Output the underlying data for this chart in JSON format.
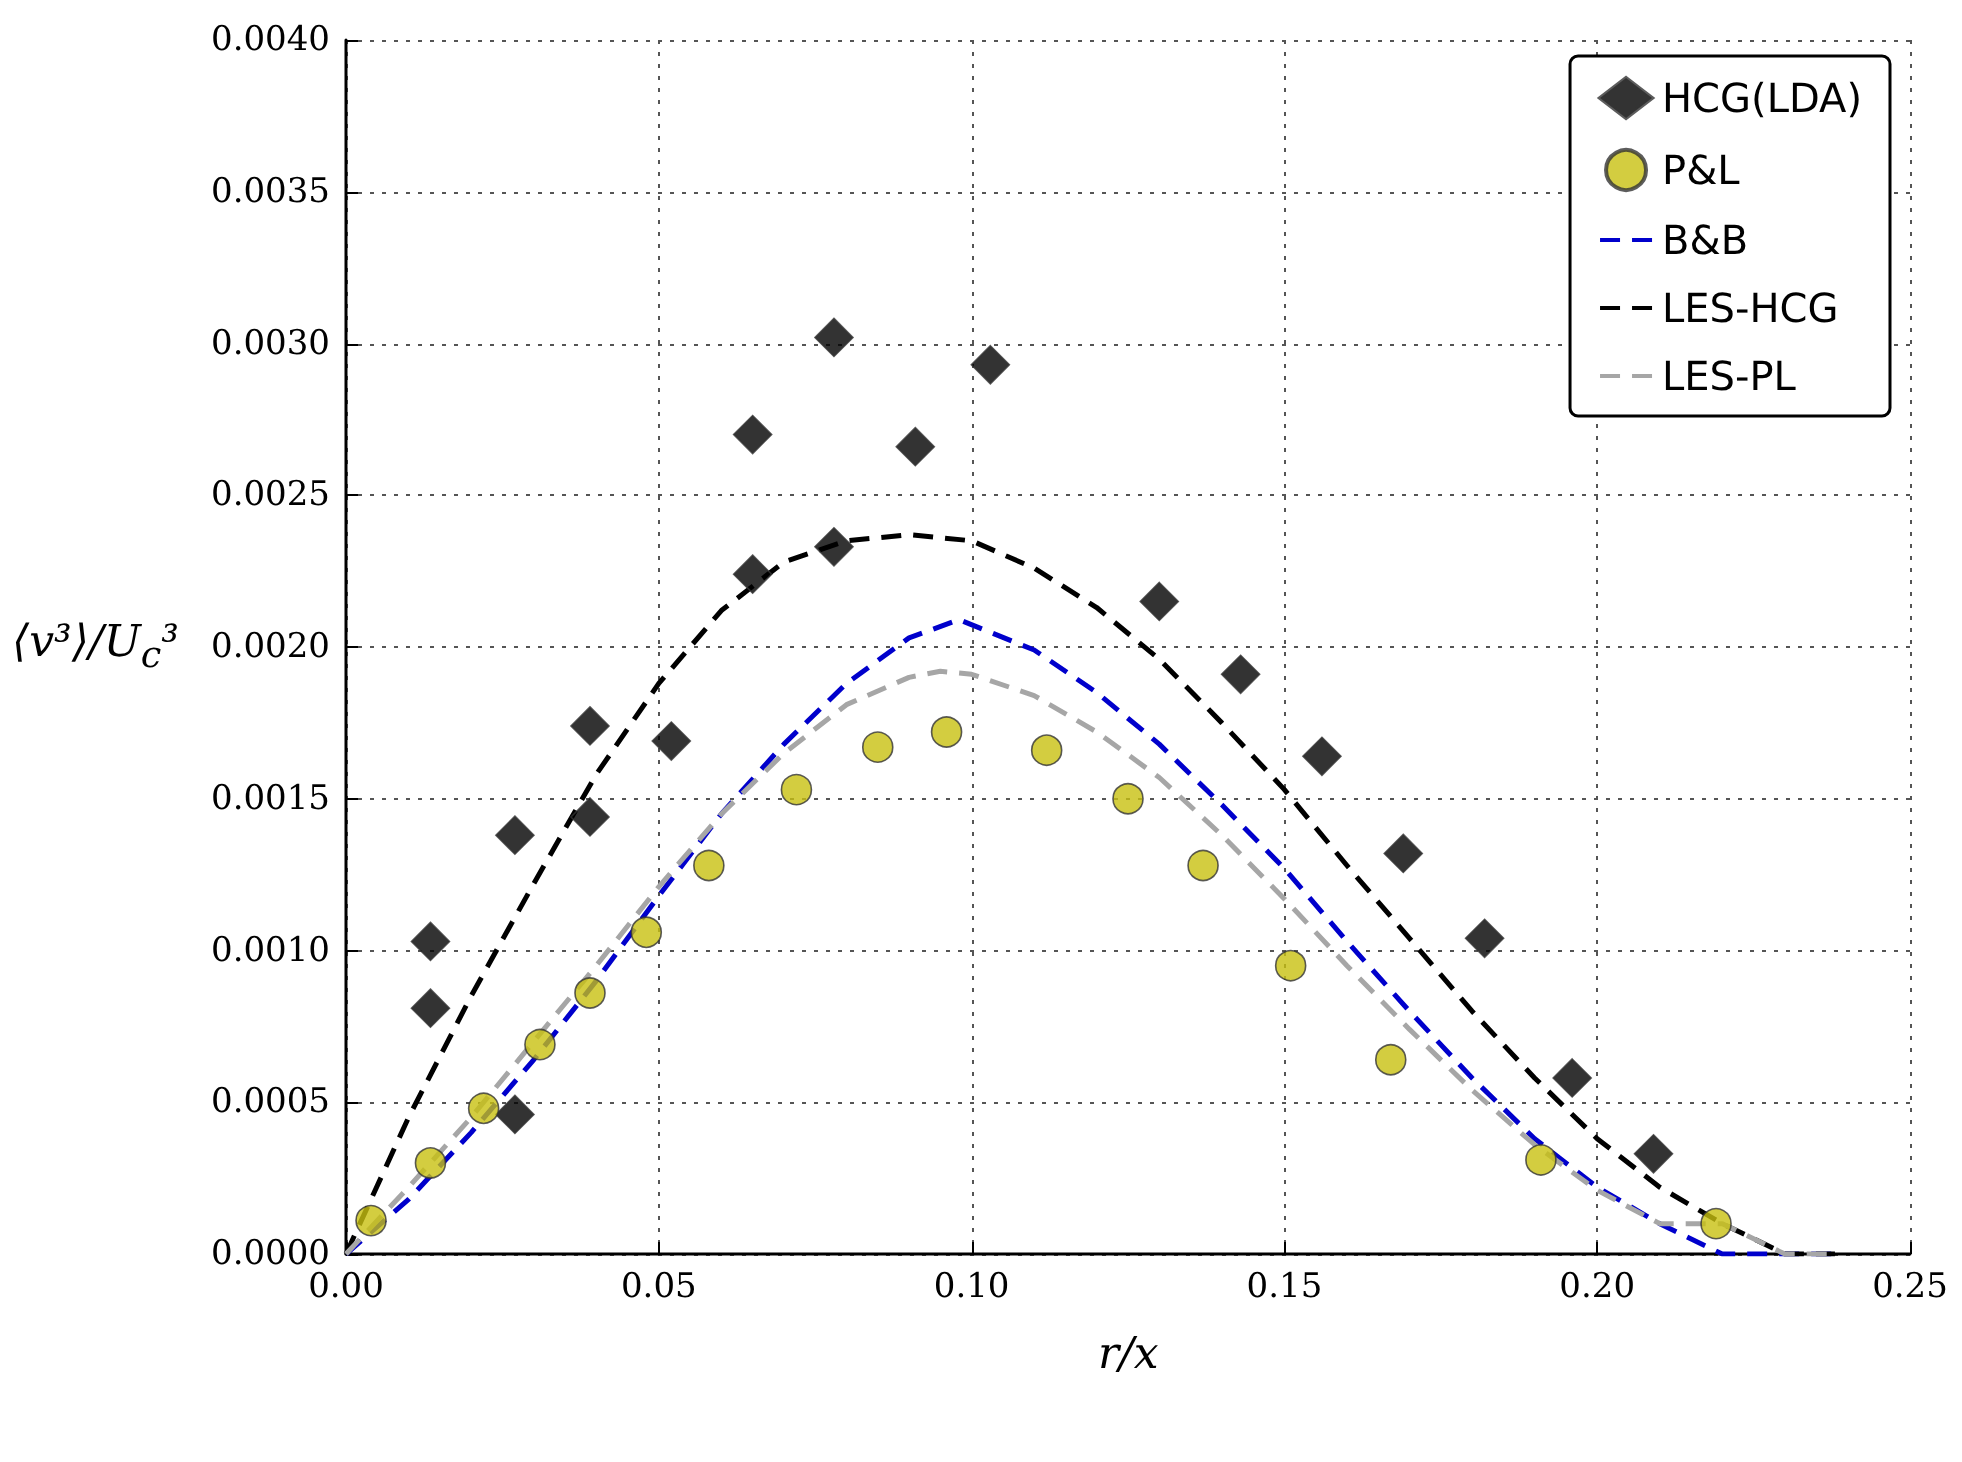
{
  "chart_data": {
    "type": "scatter",
    "xlabel": "r/x",
    "ylabel": "⟨v³⟩/U$_{c}$³",
    "xlim": [
      0,
      0.25
    ],
    "ylim": [
      0,
      0.004
    ],
    "xticks": [
      {
        "value": 0,
        "label": "0.00"
      },
      {
        "value": 0.05,
        "label": "0.05"
      },
      {
        "value": 0.1,
        "label": "0.10"
      },
      {
        "value": 0.15,
        "label": "0.15"
      },
      {
        "value": 0.2,
        "label": "0.20"
      },
      {
        "value": 0.25,
        "label": "0.25"
      }
    ],
    "yticks": [
      {
        "value": 0,
        "label": "0.0000"
      },
      {
        "value": 0.0005,
        "label": "0.0005"
      },
      {
        "value": 0.001,
        "label": "0.0010"
      },
      {
        "value": 0.0015,
        "label": "0.0015"
      },
      {
        "value": 0.002,
        "label": "0.0020"
      },
      {
        "value": 0.0025,
        "label": "0.0025"
      },
      {
        "value": 0.003,
        "label": "0.0030"
      },
      {
        "value": 0.0035,
        "label": "0.0035"
      },
      {
        "value": 0.004,
        "label": "0.0040"
      }
    ],
    "grid": true,
    "legend": "top right",
    "series": [
      {
        "name": "HCG(LDA)",
        "marker": "diamond",
        "color": "#000000",
        "x": [
          0.0135,
          0.0135,
          0.027,
          0.027,
          0.039,
          0.039,
          0.052,
          0.065,
          0.065,
          0.078,
          0.078,
          0.091,
          0.103,
          0.13,
          0.143,
          0.156,
          0.169,
          0.182,
          0.196,
          0.209
        ],
        "values": [
          0.00103,
          0.00081,
          0.00138,
          0.00046,
          0.00174,
          0.00144,
          0.00169,
          0.0027,
          0.00224,
          0.00302,
          0.00233,
          0.00266,
          0.00293,
          0.00215,
          0.00191,
          0.00164,
          0.00132,
          0.00104,
          0.00058,
          0.00033
        ]
      },
      {
        "name": "P&L",
        "marker": "circle",
        "color": "#c8c010",
        "x": [
          0.004,
          0.0135,
          0.022,
          0.031,
          0.039,
          0.048,
          0.058,
          0.072,
          0.085,
          0.096,
          0.112,
          0.125,
          0.137,
          0.151,
          0.167,
          0.191,
          0.219
        ],
        "values": [
          0.00011,
          0.0003,
          0.00048,
          0.00069,
          0.00086,
          0.00106,
          0.00128,
          0.00153,
          0.00167,
          0.00172,
          0.00166,
          0.0015,
          0.00128,
          0.00095,
          0.00064,
          0.00031,
          0.0001
        ]
      },
      {
        "name": "B&B",
        "type": "line",
        "marker": "none",
        "line_style": "dashed",
        "color": "#0000cc",
        "x": [
          0,
          0.01,
          0.02,
          0.03,
          0.04,
          0.05,
          0.06,
          0.07,
          0.08,
          0.09,
          0.098,
          0.11,
          0.12,
          0.13,
          0.14,
          0.15,
          0.16,
          0.17,
          0.18,
          0.19,
          0.2,
          0.21,
          0.22,
          0.23,
          0.238
        ],
        "values": [
          0,
          0.00018,
          0.0004,
          0.00064,
          0.0009,
          0.00118,
          0.00145,
          0.00168,
          0.00188,
          0.00203,
          0.00209,
          0.00199,
          0.00185,
          0.00168,
          0.00148,
          0.00127,
          0.00103,
          0.0008,
          0.00058,
          0.00038,
          0.00022,
          0.0001,
          0,
          0,
          0
        ]
      },
      {
        "name": "LES-HCG",
        "type": "line",
        "marker": "none",
        "line_style": "dashed",
        "color": "#000000",
        "x": [
          0,
          0.01,
          0.02,
          0.03,
          0.04,
          0.05,
          0.06,
          0.07,
          0.08,
          0.09,
          0.1,
          0.11,
          0.12,
          0.13,
          0.14,
          0.15,
          0.16,
          0.17,
          0.18,
          0.19,
          0.2,
          0.21,
          0.22,
          0.23,
          0.238
        ],
        "values": [
          0,
          0.00045,
          0.00085,
          0.00122,
          0.00158,
          0.00188,
          0.00212,
          0.00228,
          0.00235,
          0.00237,
          0.00235,
          0.00226,
          0.00213,
          0.00196,
          0.00175,
          0.00153,
          0.00128,
          0.00104,
          0.0008,
          0.00058,
          0.00038,
          0.00022,
          0.0001,
          0,
          0
        ]
      },
      {
        "name": "LES-PL",
        "type": "line",
        "marker": "none",
        "line_style": "dashed",
        "color": "#a6a6a6",
        "x": [
          0,
          0.01,
          0.02,
          0.03,
          0.04,
          0.05,
          0.06,
          0.07,
          0.08,
          0.09,
          0.095,
          0.1,
          0.11,
          0.12,
          0.13,
          0.14,
          0.15,
          0.16,
          0.17,
          0.18,
          0.19,
          0.2,
          0.21,
          0.22,
          0.23,
          0.238
        ],
        "values": [
          0,
          0.00022,
          0.00045,
          0.0007,
          0.00095,
          0.00121,
          0.00145,
          0.00165,
          0.00181,
          0.0019,
          0.00192,
          0.00191,
          0.00184,
          0.00172,
          0.00157,
          0.00138,
          0.00117,
          0.00095,
          0.00074,
          0.00054,
          0.00036,
          0.00021,
          0.0001,
          0.0001,
          0,
          0
        ]
      }
    ]
  }
}
